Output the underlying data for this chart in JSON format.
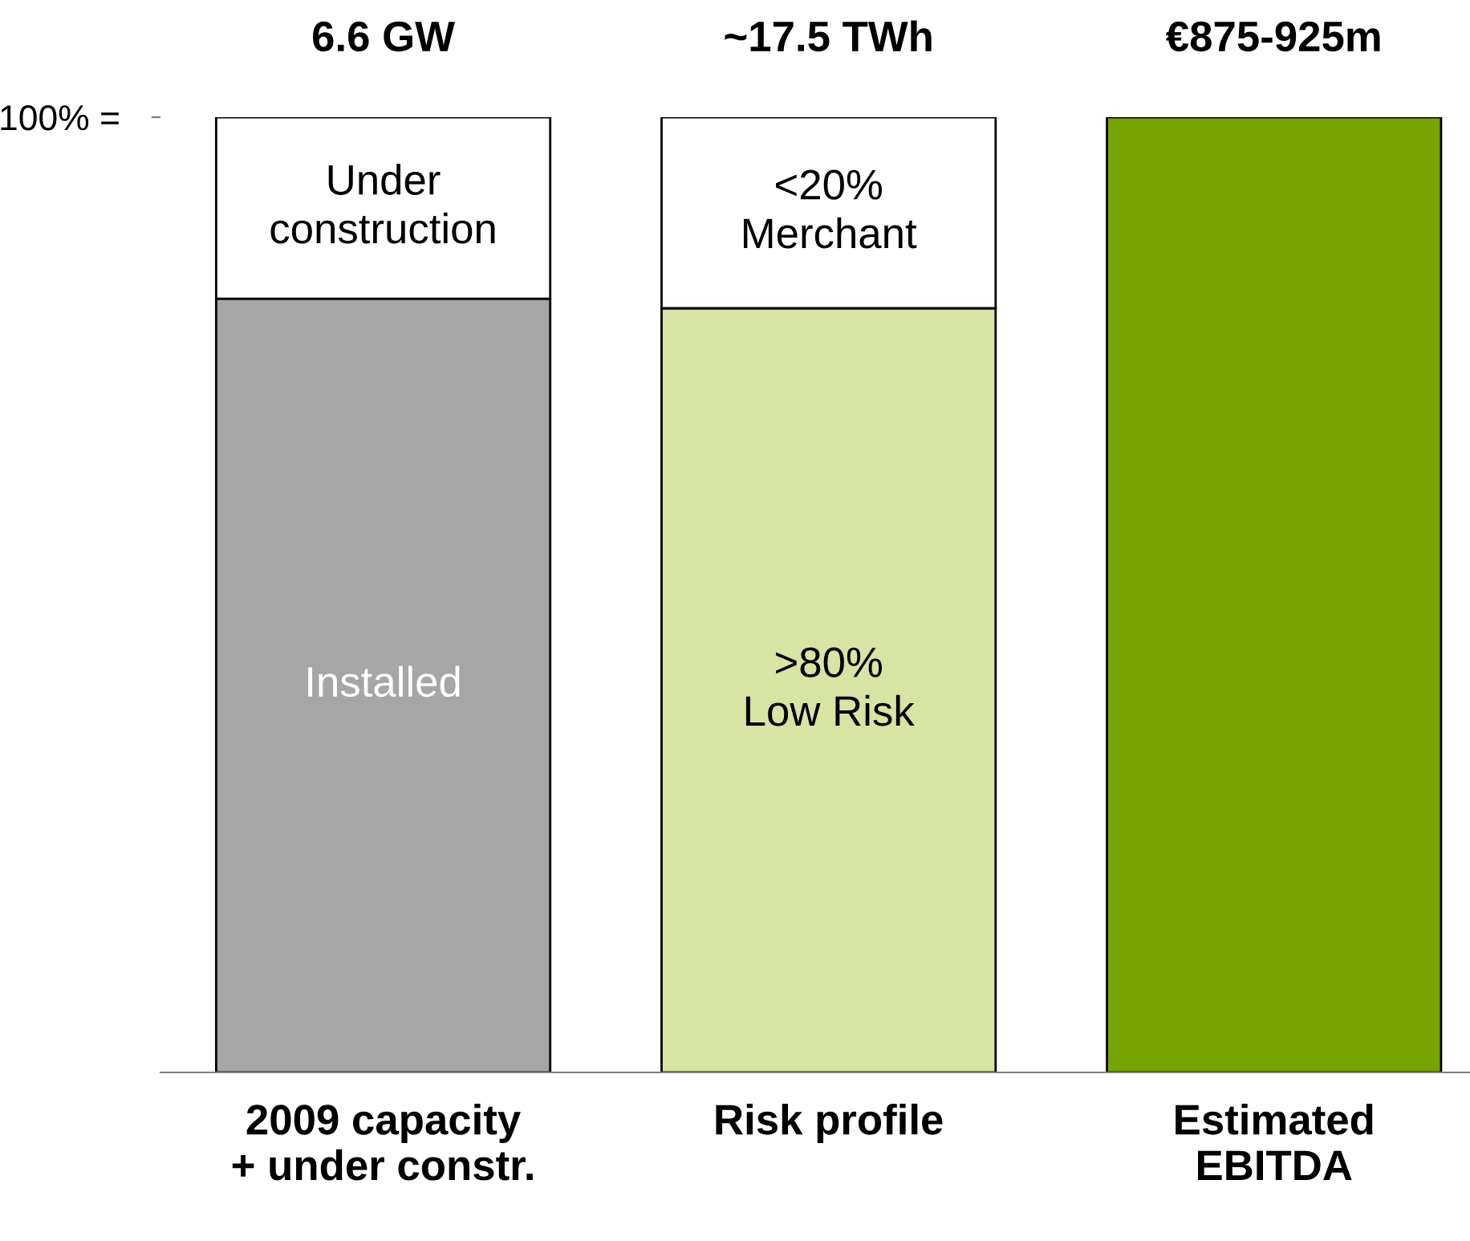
{
  "chart_data": {
    "type": "bar",
    "stacked": true,
    "categories": [
      "2009 capacity\n+ under constr.",
      "Risk profile",
      "Estimated\nEBITDA"
    ],
    "series": [
      {
        "colors": [
          "#a6a6a6",
          "#d7e4a3",
          "#77a500"
        ],
        "values": [
          81,
          80,
          100
        ],
        "value_labels": [
          "Installed",
          ">80%\nLow Risk",
          null
        ]
      },
      {
        "colors": [
          "#ffffff",
          "#ffffff",
          "#ffffff"
        ],
        "values": [
          19,
          20,
          null
        ],
        "value_labels": [
          "Under\nconstruction",
          "<20%\nMerchant",
          null
        ]
      }
    ],
    "ylim": [
      0,
      100
    ],
    "yticks": [
      {
        "value": 100,
        "label": "100% ="
      }
    ],
    "annotations": [
      "6.6 GW",
      "~17.5 TWh",
      "€875-925m"
    ]
  }
}
